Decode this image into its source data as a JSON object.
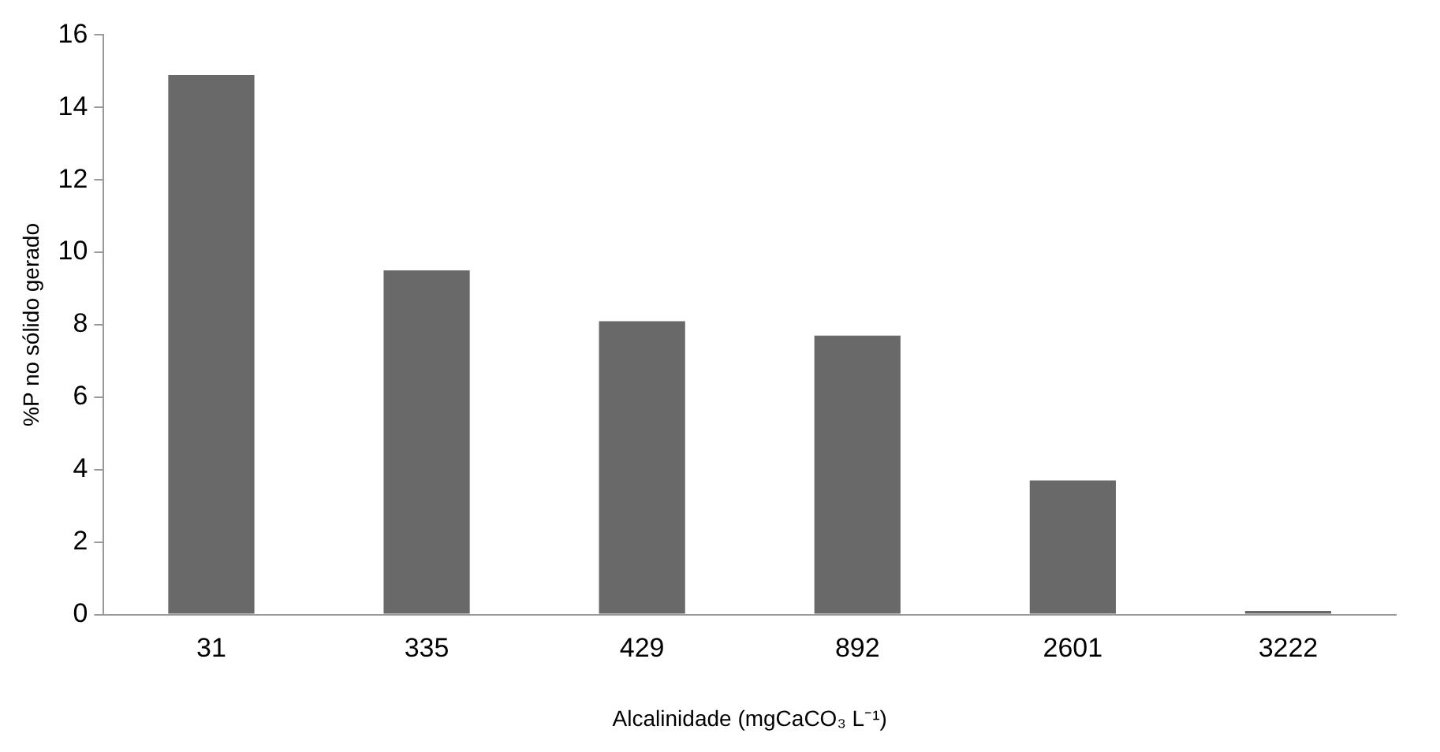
{
  "chart_data": {
    "type": "bar",
    "xlabel": "Alcalinidade (mgCaCO₃ L⁻¹)",
    "ylabel": "%P no sólido gerado",
    "categories": [
      "31",
      "335",
      "429",
      "892",
      "2601",
      "3222"
    ],
    "values": [
      14.9,
      9.5,
      8.1,
      7.7,
      3.7,
      0.1
    ],
    "color": "#696969",
    "ylim": [
      0,
      16
    ],
    "yticks": [
      0,
      2,
      4,
      6,
      8,
      10,
      12,
      14,
      16
    ],
    "grid": false,
    "legend": false
  }
}
